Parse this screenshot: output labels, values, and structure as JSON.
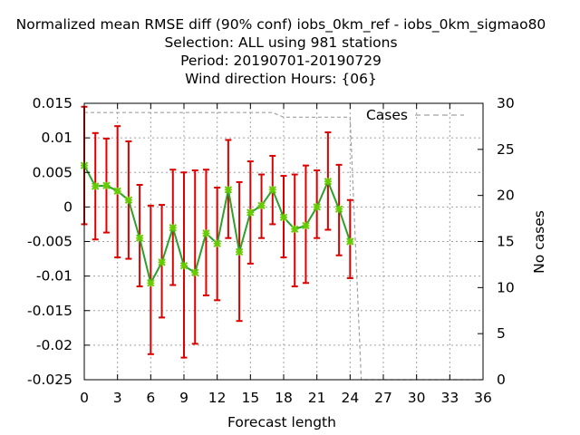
{
  "chart_data": {
    "type": "line",
    "title_lines": [
      "Normalized mean RMSE diff (90% conf) iobs_0km_ref - iobs_0km_sigmao80",
      "Selection: ALL using   981 stations",
      "Period: 20190701-20190729",
      "Wind direction   Hours: {06}"
    ],
    "xlabel": "Forecast length",
    "ylabel_right": "No cases",
    "xlim": [
      0,
      36
    ],
    "ylim": [
      -0.025,
      0.015
    ],
    "y2lim": [
      0,
      30
    ],
    "x_ticks": [
      0,
      3,
      6,
      9,
      12,
      15,
      18,
      21,
      24,
      27,
      30,
      33,
      36
    ],
    "x_tick_labels": [
      "0",
      "3",
      "6",
      "9",
      "12",
      "15",
      "18",
      "21",
      "24",
      "27",
      "30",
      "33",
      "36"
    ],
    "y_ticks": [
      0.015,
      0.01,
      0.005,
      0,
      -0.005,
      -0.01,
      -0.015,
      -0.02,
      -0.025
    ],
    "y_tick_labels": [
      "0.015",
      "0.01",
      "0.005",
      "0",
      "-0.005",
      "-0.01",
      "-0.015",
      "-0.02",
      "-0.025"
    ],
    "y2_ticks": [
      30,
      25,
      20,
      15,
      10,
      5,
      0
    ],
    "y2_tick_labels": [
      "30",
      "25",
      "20",
      "15",
      "10",
      "5",
      "0"
    ],
    "grid": true,
    "legend_position": "top-right",
    "series": [
      {
        "name": "",
        "color": "#2ca02c",
        "marker_color": "#66cc00",
        "errorbar_color": "#dd0000",
        "x": [
          0,
          1,
          2,
          3,
          4,
          5,
          6,
          7,
          8,
          9,
          10,
          11,
          12,
          13,
          14,
          15,
          16,
          17,
          18,
          19,
          20,
          21,
          22,
          23,
          24
        ],
        "y": [
          0.006,
          0.003,
          0.0031,
          0.0023,
          0.001,
          -0.0045,
          -0.011,
          -0.008,
          -0.003,
          -0.0085,
          -0.0095,
          -0.0038,
          -0.0053,
          0.0025,
          -0.0065,
          -0.0008,
          0.0002,
          0.0025,
          -0.0015,
          -0.0032,
          -0.0027,
          0,
          0.0037,
          -0.0003,
          -0.005
        ],
        "err_low": [
          -0.0025,
          -0.0047,
          -0.0037,
          -0.0073,
          -0.0075,
          -0.0115,
          -0.0213,
          -0.016,
          -0.0113,
          -0.0218,
          -0.0198,
          -0.0128,
          -0.0135,
          -0.0045,
          -0.0165,
          -0.0082,
          -0.0045,
          -0.0025,
          -0.0073,
          -0.0115,
          -0.011,
          -0.0045,
          -0.0033,
          -0.007,
          -0.0103
        ],
        "err_high": [
          0.0145,
          0.0107,
          0.0099,
          0.0117,
          0.0095,
          0.0032,
          0.0002,
          0.0003,
          0.0054,
          0.005,
          0.0053,
          0.0054,
          0.0028,
          0.0097,
          0.0036,
          0.0066,
          0.0047,
          0.0074,
          0.0045,
          0.0047,
          0.006,
          0.0053,
          0.0108,
          0.0061,
          0.001
        ]
      },
      {
        "name": "Cases",
        "axis": "right",
        "color": "#a0a0a0",
        "dash": true,
        "x": [
          0,
          1,
          2,
          3,
          4,
          5,
          6,
          7,
          8,
          9,
          10,
          11,
          12,
          13,
          14,
          15,
          16,
          17,
          18,
          19,
          20,
          21,
          22,
          23,
          24,
          25,
          26,
          27,
          28,
          29,
          30,
          31,
          32,
          33,
          34,
          35,
          36
        ],
        "y": [
          29,
          29,
          29,
          29,
          29,
          29,
          29,
          29,
          29,
          29,
          29,
          29,
          29,
          29,
          29,
          29,
          29,
          29,
          28.5,
          28.5,
          28.5,
          28.5,
          28.5,
          28.5,
          28.5,
          0,
          0,
          0,
          0,
          0,
          0,
          0,
          0,
          0,
          0,
          0,
          0
        ]
      }
    ]
  }
}
